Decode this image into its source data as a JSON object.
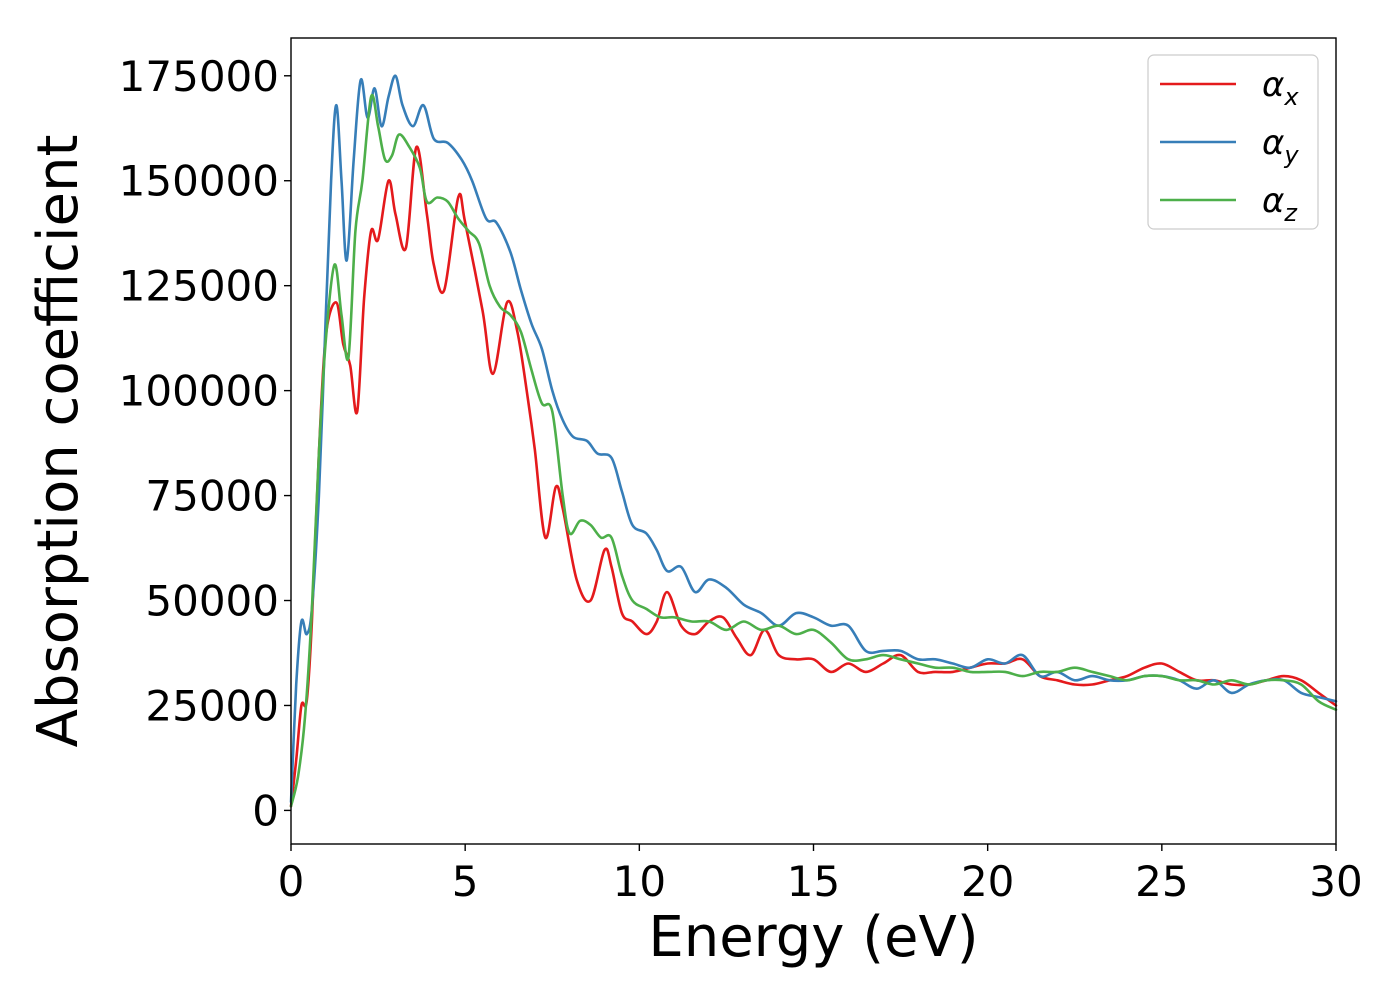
{
  "chart_data": {
    "type": "line",
    "xlabel": "Energy (eV)",
    "ylabel": "Absorption coefficient",
    "xlim": [
      0,
      30
    ],
    "ylim": [
      -8000,
      184000
    ],
    "xticks": [
      0,
      5,
      10,
      15,
      20,
      25,
      30
    ],
    "yticks": [
      0,
      25000,
      50000,
      75000,
      100000,
      125000,
      150000,
      175000
    ],
    "grid": false,
    "legend_position": "top-right",
    "series": [
      {
        "name": "α_x",
        "label_base": "α",
        "label_sub": "x",
        "color": "#e41a1c",
        "x": [
          0.0,
          0.15,
          0.3,
          0.45,
          0.6,
          0.8,
          1.0,
          1.3,
          1.5,
          1.7,
          1.9,
          2.1,
          2.3,
          2.5,
          2.8,
          3.0,
          3.3,
          3.6,
          3.9,
          4.1,
          4.4,
          4.8,
          5.0,
          5.5,
          5.8,
          6.2,
          6.5,
          6.8,
          7.0,
          7.3,
          7.6,
          7.8,
          8.2,
          8.6,
          9.0,
          9.2,
          9.5,
          9.8,
          10.2,
          10.5,
          10.8,
          11.2,
          11.6,
          12.0,
          12.4,
          12.8,
          13.2,
          13.6,
          14.0,
          14.5,
          15.0,
          15.5,
          16.0,
          16.5,
          17.0,
          17.5,
          18.0,
          18.5,
          19.0,
          19.5,
          20.0,
          20.5,
          21.0,
          21.5,
          22.0,
          22.5,
          23.0,
          23.5,
          24.0,
          24.5,
          25.0,
          25.5,
          26.0,
          26.5,
          27.0,
          27.5,
          28.0,
          28.5,
          29.0,
          29.5,
          30.0
        ],
        "y": [
          1000,
          12000,
          25000,
          26000,
          45000,
          85000,
          113000,
          121000,
          111000,
          106000,
          95000,
          122000,
          138000,
          136000,
          150000,
          142000,
          134000,
          158000,
          142000,
          130000,
          124000,
          146000,
          140000,
          119000,
          104000,
          121000,
          114000,
          98000,
          86000,
          65000,
          77000,
          72000,
          55000,
          50000,
          62000,
          58000,
          47000,
          45000,
          42000,
          45000,
          52000,
          44000,
          42000,
          45000,
          46000,
          41000,
          37000,
          43000,
          37000,
          36000,
          36000,
          33000,
          35000,
          33000,
          35000,
          37000,
          33000,
          33000,
          33000,
          34000,
          35000,
          35000,
          36000,
          32000,
          31000,
          30000,
          30000,
          31000,
          32000,
          34000,
          35000,
          33000,
          31000,
          31000,
          30000,
          30000,
          31000,
          32000,
          31000,
          28000,
          25000
        ]
      },
      {
        "name": "α_y",
        "label_base": "α",
        "label_sub": "y",
        "color": "#377eb8",
        "x": [
          0.0,
          0.15,
          0.3,
          0.45,
          0.6,
          0.8,
          1.0,
          1.15,
          1.3,
          1.45,
          1.6,
          1.8,
          2.0,
          2.2,
          2.4,
          2.6,
          2.8,
          3.0,
          3.2,
          3.5,
          3.8,
          4.1,
          4.5,
          4.9,
          5.2,
          5.6,
          5.9,
          6.3,
          6.6,
          6.9,
          7.2,
          7.5,
          7.8,
          8.1,
          8.5,
          8.8,
          9.2,
          9.5,
          9.8,
          10.2,
          10.5,
          10.8,
          11.2,
          11.6,
          12.0,
          12.5,
          13.0,
          13.5,
          14.0,
          14.5,
          15.0,
          15.5,
          16.0,
          16.5,
          17.0,
          17.5,
          18.0,
          18.5,
          19.0,
          19.5,
          20.0,
          20.5,
          21.0,
          21.5,
          22.0,
          22.5,
          23.0,
          23.5,
          24.0,
          24.5,
          25.0,
          25.5,
          26.0,
          26.5,
          27.0,
          27.5,
          28.0,
          28.5,
          29.0,
          29.5,
          30.0
        ],
        "y": [
          2000,
          30000,
          45000,
          42000,
          48000,
          75000,
          118000,
          150000,
          168000,
          150000,
          131000,
          155000,
          174000,
          165000,
          172000,
          163000,
          170000,
          175000,
          168000,
          163000,
          168000,
          160000,
          159000,
          155000,
          150000,
          141000,
          140000,
          133000,
          124000,
          116000,
          110000,
          100000,
          93000,
          89000,
          88000,
          85000,
          84000,
          76000,
          68000,
          66000,
          62000,
          57000,
          58000,
          52000,
          55000,
          53000,
          49000,
          47000,
          44000,
          47000,
          46000,
          44000,
          44000,
          38000,
          38000,
          38000,
          36000,
          36000,
          35000,
          34000,
          36000,
          35000,
          37000,
          32000,
          33000,
          31000,
          32000,
          31000,
          31000,
          32000,
          32000,
          31000,
          29000,
          31000,
          28000,
          30000,
          31000,
          31000,
          28000,
          27000,
          26000
        ]
      },
      {
        "name": "α_z",
        "label_base": "α",
        "label_sub": "z",
        "color": "#4daf4a",
        "x": [
          0.0,
          0.2,
          0.4,
          0.6,
          0.8,
          1.0,
          1.25,
          1.45,
          1.65,
          1.85,
          2.05,
          2.3,
          2.5,
          2.7,
          2.9,
          3.1,
          3.4,
          3.7,
          3.9,
          4.2,
          4.5,
          4.8,
          5.1,
          5.4,
          5.7,
          6.0,
          6.3,
          6.6,
          6.9,
          7.2,
          7.5,
          7.8,
          8.0,
          8.3,
          8.6,
          8.9,
          9.2,
          9.5,
          9.8,
          10.2,
          10.6,
          11.0,
          11.5,
          12.0,
          12.5,
          13.0,
          13.5,
          14.0,
          14.5,
          15.0,
          15.5,
          16.0,
          16.5,
          17.0,
          17.5,
          18.0,
          18.5,
          19.0,
          19.5,
          20.0,
          20.5,
          21.0,
          21.5,
          22.0,
          22.5,
          23.0,
          23.5,
          24.0,
          24.5,
          25.0,
          25.5,
          26.0,
          26.5,
          27.0,
          27.5,
          28.0,
          28.5,
          29.0,
          29.5,
          30.0
        ],
        "y": [
          1000,
          8000,
          22000,
          48000,
          85000,
          112000,
          130000,
          118000,
          108000,
          138000,
          150000,
          170000,
          163000,
          155000,
          156000,
          161000,
          158000,
          153000,
          145000,
          146000,
          145000,
          141000,
          138000,
          135000,
          125000,
          120000,
          118000,
          114000,
          105000,
          97000,
          95000,
          75000,
          66000,
          69000,
          68000,
          65000,
          65000,
          56000,
          50000,
          48000,
          46000,
          46000,
          45000,
          45000,
          43000,
          45000,
          43000,
          44000,
          42000,
          43000,
          40000,
          36000,
          36000,
          37000,
          36000,
          35000,
          34000,
          34000,
          33000,
          33000,
          33000,
          32000,
          33000,
          33000,
          34000,
          33000,
          32000,
          31000,
          32000,
          32000,
          31000,
          31000,
          30000,
          31000,
          30000,
          31000,
          31000,
          30000,
          26000,
          24000
        ]
      }
    ]
  }
}
